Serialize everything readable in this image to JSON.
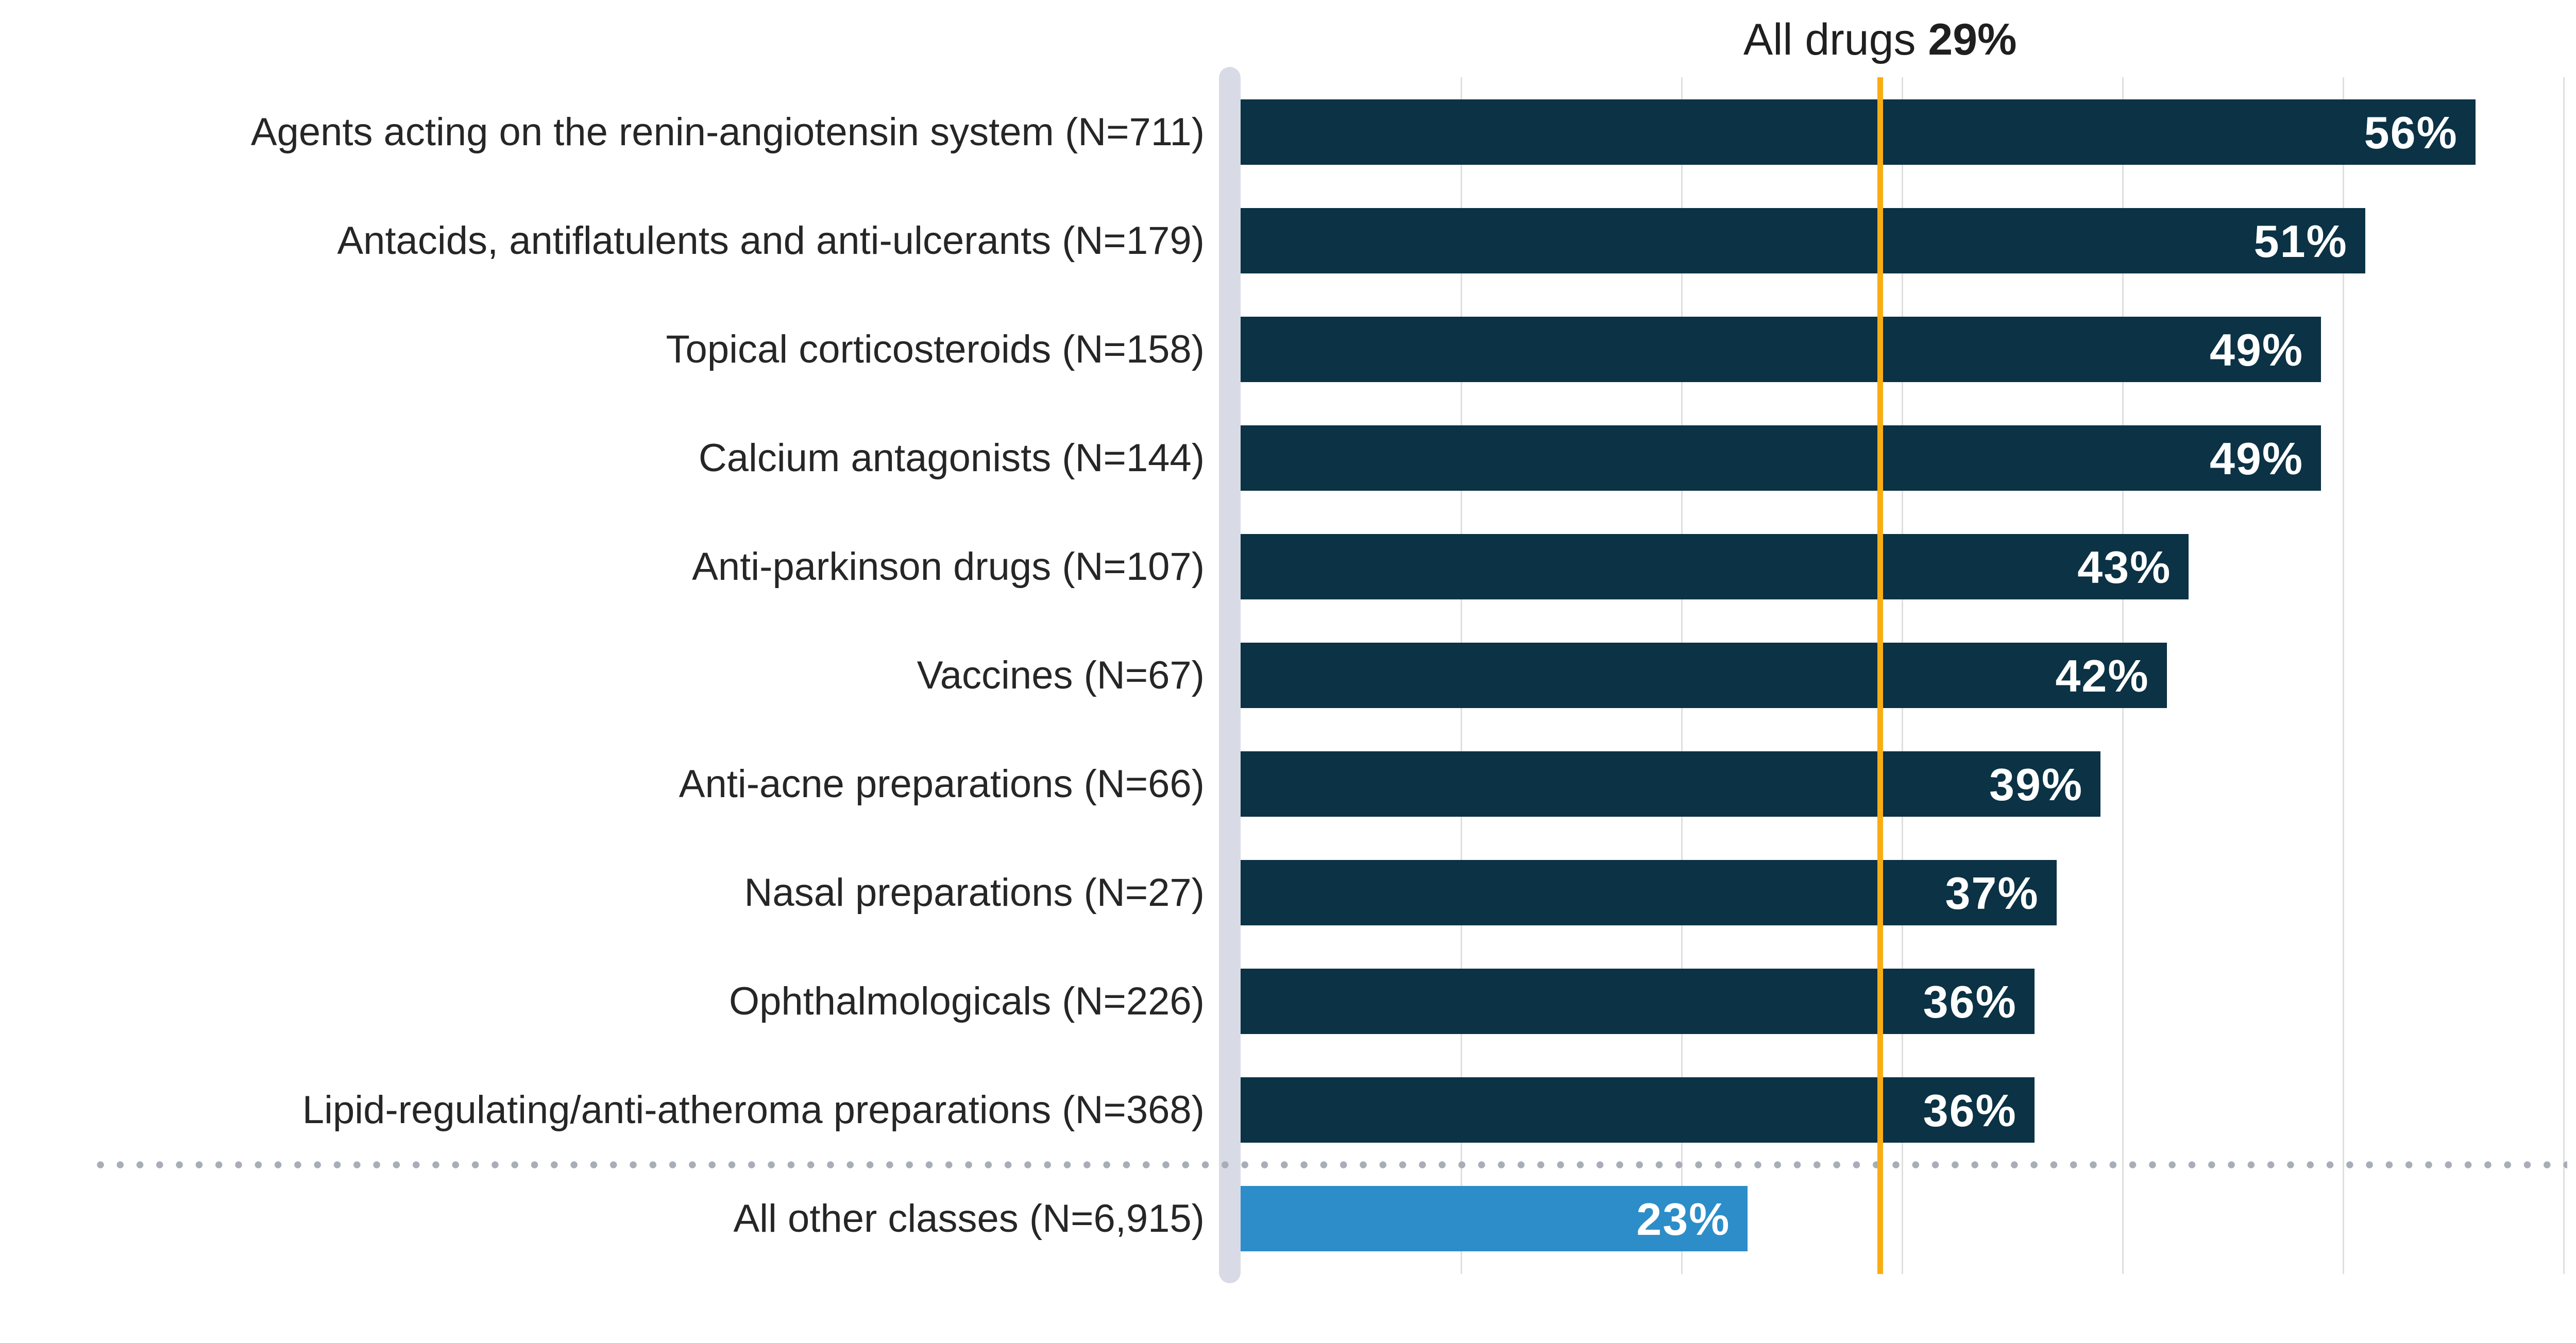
{
  "title": {
    "prefix": "All drugs ",
    "value": "29%"
  },
  "chart_data": {
    "type": "bar",
    "orientation": "horizontal",
    "title": "All drugs 29%",
    "xlabel": "",
    "ylabel": "",
    "xlim": [
      0,
      60
    ],
    "grid": "vertical",
    "gridlines_pct": [
      10,
      20,
      30,
      40,
      50,
      60
    ],
    "reference_line": {
      "label": "All drugs",
      "percent": 29
    },
    "categories": [
      "Agents acting on the renin-angiotensin system (N=711)",
      "Antacids, antiflatulents and anti-ulcerants (N=179)",
      "Topical corticosteroids (N=158)",
      "Calcium antagonists (N=144)",
      "Anti-parkinson drugs (N=107)",
      "Vaccines (N=67)",
      "Anti-acne preparations (N=66)",
      "Nasal preparations (N=27)",
      "Ophthalmologicals (N=226)",
      "Lipid-regulating/anti-atheroma preparations (N=368)",
      "All other classes (N=6,915)"
    ],
    "values": [
      56,
      51,
      49,
      49,
      43,
      42,
      39,
      37,
      36,
      36,
      23
    ],
    "value_labels": [
      "56%",
      "51%",
      "49%",
      "49%",
      "43%",
      "42%",
      "39%",
      "37%",
      "36%",
      "36%",
      "23%"
    ],
    "highlight_rows": [
      10
    ],
    "separator_after_row": 10
  },
  "colors": {
    "bar": "#0B3245",
    "highlight_bar": "#2D8DC9",
    "reference_line": "#F8AD15",
    "axis_baseline": "#D8DBE6",
    "gridline": "#DFDFDF",
    "separator_dot": "#A8ADB8",
    "value_text": "#FFFFFF",
    "label_text": "#262626",
    "title_text": "#1F1F1F"
  }
}
